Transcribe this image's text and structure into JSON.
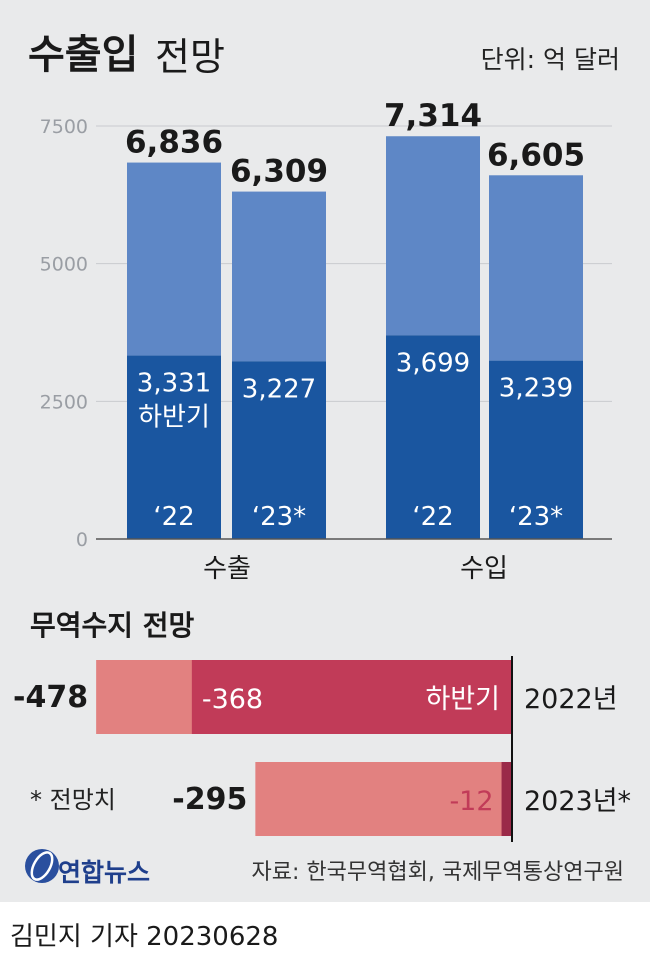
{
  "header": {
    "title_bold": "수출입",
    "title_light": "전망",
    "unit": "단위: 억 달러"
  },
  "chart_data": [
    {
      "type": "bar",
      "yticks": [
        0,
        2500,
        5000,
        7500
      ],
      "ylim": [
        0,
        7500
      ],
      "grid": true,
      "categories": [
        "수출",
        "수입"
      ],
      "bars": [
        {
          "group": "수출",
          "period": "‘22",
          "total": 6836,
          "total_label": "6,836",
          "h2": 3331,
          "h2_label": "3,331",
          "h2_caption": "하반기"
        },
        {
          "group": "수출",
          "period": "‘23*",
          "total": 6309,
          "total_label": "6,309",
          "h2": 3227,
          "h2_label": "3,227"
        },
        {
          "group": "수입",
          "period": "‘22",
          "total": 7314,
          "total_label": "7,314",
          "h2": 3699,
          "h2_label": "3,699"
        },
        {
          "group": "수입",
          "period": "‘23*",
          "total": 6605,
          "total_label": "6,605",
          "h2": 3239,
          "h2_label": "3,239"
        }
      ]
    },
    {
      "type": "bar",
      "orientation": "horizontal",
      "title": "무역수지 전망",
      "rows": [
        {
          "year": "2022년",
          "total": -478,
          "total_label": "-478",
          "h2": -368,
          "h2_label": "-368",
          "h2_caption": "하반기"
        },
        {
          "year": "2023년*",
          "total": -295,
          "total_label": "-295",
          "h2": -12,
          "h2_label": "-12"
        }
      ]
    }
  ],
  "note": "* 전망치",
  "source": "자료: 한국무역협회, 국제무역통상연구원",
  "logo_text": "연합뉴스",
  "footer": "김민지 기자  20230628",
  "colors": {
    "bar_light": "#5e87c6",
    "bar_dark": "#1a56a0",
    "balance_light": "#e28180",
    "balance_dark": "#c13b58",
    "balance_edge": "#9a2a48"
  }
}
